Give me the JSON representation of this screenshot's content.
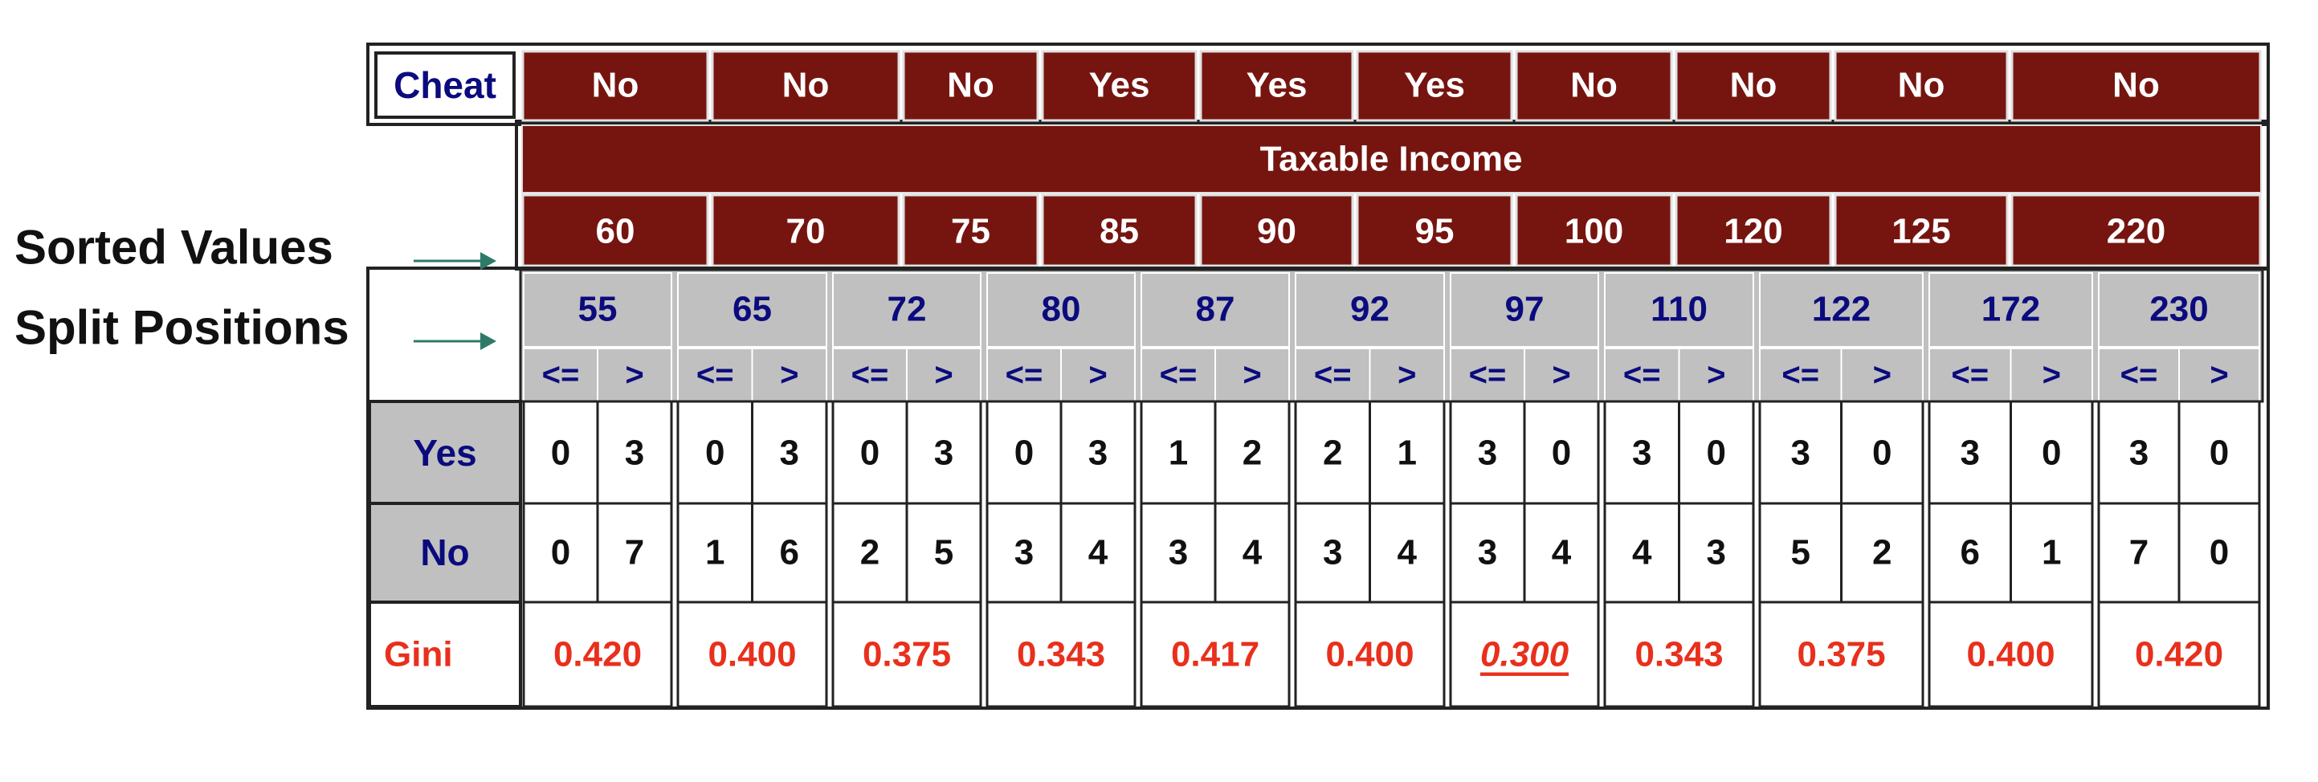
{
  "cheat_row": {
    "header": "Cheat",
    "values": [
      "No",
      "No",
      "No",
      "Yes",
      "Yes",
      "Yes",
      "No",
      "No",
      "No",
      "No"
    ]
  },
  "attribute_title": "Taxable Income",
  "sorted_values": [
    "60",
    "70",
    "75",
    "85",
    "90",
    "95",
    "100",
    "120",
    "125",
    "220"
  ],
  "split_positions": [
    "55",
    "65",
    "72",
    "80",
    "87",
    "92",
    "97",
    "110",
    "122",
    "172",
    "230"
  ],
  "compare_labels": {
    "le": "<=",
    "gt": ">"
  },
  "side_labels": {
    "sorted_values": "Sorted Values",
    "split_positions": "Split Positions"
  },
  "count_rows": [
    {
      "label": "Yes",
      "counts": [
        [
          "0",
          "3"
        ],
        [
          "0",
          "3"
        ],
        [
          "0",
          "3"
        ],
        [
          "0",
          "3"
        ],
        [
          "1",
          "2"
        ],
        [
          "2",
          "1"
        ],
        [
          "3",
          "0"
        ],
        [
          "3",
          "0"
        ],
        [
          "3",
          "0"
        ],
        [
          "3",
          "0"
        ],
        [
          "3",
          "0"
        ]
      ]
    },
    {
      "label": "No",
      "counts": [
        [
          "0",
          "7"
        ],
        [
          "1",
          "6"
        ],
        [
          "2",
          "5"
        ],
        [
          "3",
          "4"
        ],
        [
          "3",
          "4"
        ],
        [
          "3",
          "4"
        ],
        [
          "3",
          "4"
        ],
        [
          "4",
          "3"
        ],
        [
          "5",
          "2"
        ],
        [
          "6",
          "1"
        ],
        [
          "7",
          "0"
        ]
      ]
    }
  ],
  "gini_row": {
    "label": "Gini",
    "values": [
      "0.420",
      "0.400",
      "0.375",
      "0.343",
      "0.417",
      "0.400",
      "0.300",
      "0.343",
      "0.375",
      "0.400",
      "0.420"
    ],
    "best_index": 6
  },
  "colors": {
    "dark_red": "#761510",
    "grey": "#c0c0c0",
    "navy": "#0b0b7e",
    "gini_red": "#e8301c",
    "arrow": "#2e7a68",
    "text": "#111111",
    "white": "#ffffff"
  }
}
